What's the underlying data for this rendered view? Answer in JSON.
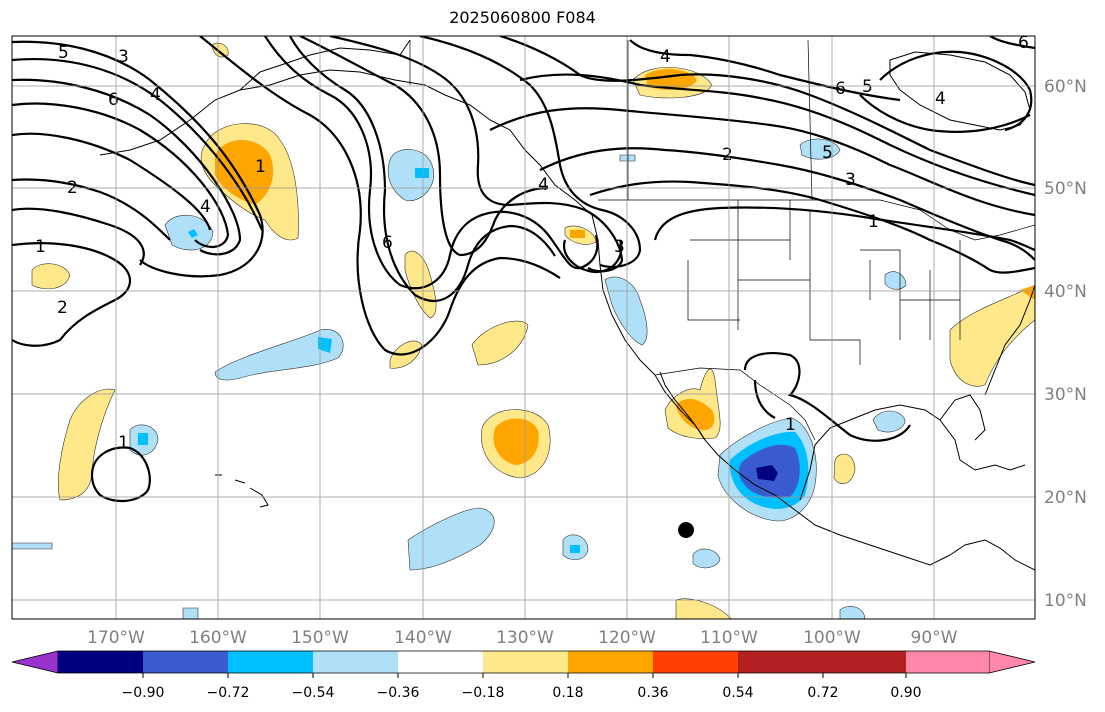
{
  "title": "2025060800 F084",
  "latitudes": [
    "10°N",
    "20°N",
    "30°N",
    "40°N",
    "50°N",
    "60°N"
  ],
  "longitudes": [
    "170°W",
    "160°W",
    "150°W",
    "140°W",
    "130°W",
    "120°W",
    "110°W",
    "100°W",
    "90°W"
  ],
  "colorbar": {
    "colors": [
      "#9932cc",
      "#000080",
      "#3a5bd0",
      "#00bfff",
      "#b0e0f8",
      "#ffffff",
      "#ffe88a",
      "#ffa500",
      "#ff4000",
      "#b22222",
      "#ff88aa"
    ],
    "ticks": [
      "−0.90",
      "−0.72",
      "−0.54",
      "−0.36",
      "−0.18",
      "0.18",
      "0.36",
      "0.54",
      "0.72",
      "0.90"
    ]
  },
  "contour_labels": {
    "l1": "5",
    "l2": "3",
    "l3": "4",
    "l4": "6",
    "l5": "2",
    "l6": "1",
    "l7": "2",
    "l8": "4",
    "l9": "1",
    "l10": "6",
    "l11": "3",
    "l12": "4",
    "l13": "2",
    "l14": "6",
    "l15": "5",
    "l16": "4",
    "l17": "5",
    "l18": "3",
    "l19": "1",
    "l20": "1",
    "l21": "1",
    "l22": "4",
    "l23": "6"
  }
}
